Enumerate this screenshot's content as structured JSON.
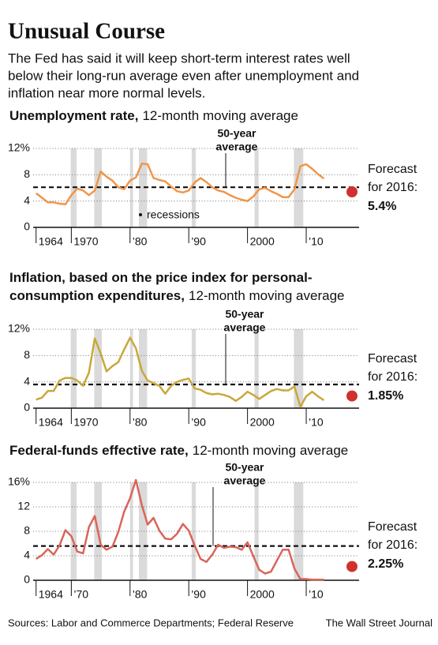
{
  "title": "Unusual Course",
  "subtitle": [
    "The Fed has said it will keep short-term interest rates well",
    "below their long-run average even after unemployment and",
    "inflation near more normal levels."
  ],
  "source": "Sources: Labor and Commerce Departments; Federal Reserve",
  "credit": "The Wall Street Journal",
  "chart_data": [
    {
      "type": "line",
      "title": [
        "Unemployment rate,"
      ],
      "subtitle": "12-month moving average",
      "x": [
        1964,
        1965,
        1966,
        1967,
        1968,
        1969,
        1970,
        1971,
        1972,
        1973,
        1974,
        1975,
        1976,
        1977,
        1978,
        1979,
        1980,
        1981,
        1982,
        1983,
        1984,
        1985,
        1986,
        1987,
        1988,
        1989,
        1990,
        1991,
        1992,
        1993,
        1994,
        1995,
        1996,
        1997,
        1998,
        1999,
        2000,
        2001,
        2002,
        2003,
        2004,
        2005,
        2006,
        2007,
        2008,
        2009,
        2010,
        2011,
        2012,
        2013
      ],
      "series": [
        {
          "color": "#f0964a",
          "values": [
            5.2,
            4.5,
            3.8,
            3.8,
            3.6,
            3.5,
            4.9,
            5.9,
            5.6,
            4.9,
            5.6,
            8.5,
            7.7,
            7.1,
            6.1,
            5.8,
            7.1,
            7.6,
            9.7,
            9.6,
            7.5,
            7.2,
            7.0,
            6.2,
            5.5,
            5.3,
            5.6,
            6.8,
            7.5,
            6.9,
            6.1,
            5.6,
            5.4,
            4.9,
            4.5,
            4.2,
            4.0,
            4.7,
            5.8,
            6.0,
            5.5,
            5.1,
            4.6,
            4.6,
            5.8,
            9.3,
            9.6,
            8.9,
            8.1,
            7.4
          ]
        }
      ],
      "xlim": [
        1963.5,
        2019
      ],
      "xticks": [
        1964,
        1970,
        {
          "value": 1980,
          "label": "’80"
        },
        {
          "value": 1990,
          "label": "’90"
        },
        2000,
        {
          "value": 2010,
          "label": "’10"
        }
      ],
      "ylim": [
        0,
        12
      ],
      "yticks": [
        0,
        4,
        8,
        {
          "value": 12,
          "label": "12%"
        }
      ],
      "grid": true,
      "recessions": [
        [
          1969.9,
          1970.9
        ],
        [
          1973.9,
          1975.2
        ],
        [
          1980.0,
          1980.5
        ],
        [
          1981.5,
          1982.9
        ],
        [
          1990.5,
          1991.2
        ],
        [
          2001.2,
          2001.9
        ],
        [
          2007.9,
          2009.5
        ]
      ],
      "recession_label": "recessions",
      "average": 6.1,
      "average_label": [
        "50-year",
        "average"
      ],
      "forecast": {
        "label": [
          "Forecast",
          "for 2016:"
        ],
        "value": 5.4,
        "value_label": "5.4%",
        "color": "#d0312d"
      }
    },
    {
      "type": "line",
      "title": [
        "Inflation, based on the price index for personal-",
        "consumption expenditures,"
      ],
      "subtitle": "12-month moving average",
      "x": [
        1964,
        1965,
        1966,
        1967,
        1968,
        1969,
        1970,
        1971,
        1972,
        1973,
        1974,
        1975,
        1976,
        1977,
        1978,
        1979,
        1980,
        1981,
        1982,
        1983,
        1984,
        1985,
        1986,
        1987,
        1988,
        1989,
        1990,
        1991,
        1992,
        1993,
        1994,
        1995,
        1996,
        1997,
        1998,
        1999,
        2000,
        2001,
        2002,
        2003,
        2004,
        2005,
        2006,
        2007,
        2008,
        2009,
        2010,
        2011,
        2012,
        2013
      ],
      "series": [
        {
          "color": "#c9a83a",
          "values": [
            1.3,
            1.6,
            2.6,
            2.6,
            4.2,
            4.6,
            4.6,
            4.2,
            3.4,
            5.4,
            10.6,
            8.3,
            5.6,
            6.4,
            7.0,
            8.9,
            10.7,
            9.1,
            5.7,
            4.2,
            3.8,
            3.4,
            2.2,
            3.4,
            4.0,
            4.3,
            4.5,
            3.0,
            2.8,
            2.3,
            2.1,
            2.2,
            2.0,
            1.7,
            1.1,
            1.7,
            2.5,
            2.0,
            1.4,
            2.0,
            2.6,
            2.9,
            2.7,
            2.7,
            3.3,
            0.2,
            1.8,
            2.5,
            1.8,
            1.2
          ]
        }
      ],
      "xlim": [
        1963.5,
        2019
      ],
      "xticks": [
        1964,
        1970,
        {
          "value": 1980,
          "label": "’80"
        },
        {
          "value": 1990,
          "label": "’90"
        },
        2000,
        {
          "value": 2010,
          "label": "’10"
        }
      ],
      "ylim": [
        0,
        12
      ],
      "yticks": [
        0,
        4,
        8,
        {
          "value": 12,
          "label": "12%"
        }
      ],
      "grid": true,
      "recessions": [
        [
          1969.9,
          1970.9
        ],
        [
          1973.9,
          1975.2
        ],
        [
          1980.0,
          1980.5
        ],
        [
          1981.5,
          1982.9
        ],
        [
          1990.5,
          1991.2
        ],
        [
          2001.2,
          2001.9
        ],
        [
          2007.9,
          2009.5
        ]
      ],
      "average": 3.6,
      "average_label": [
        "50-year",
        "average"
      ],
      "forecast": {
        "label": [
          "Forecast",
          "for 2016:"
        ],
        "value": 1.85,
        "value_label": "1.85%",
        "color": "#d0312d"
      }
    },
    {
      "type": "line",
      "title": [
        "Federal-funds effective rate,"
      ],
      "subtitle": "12-month moving average",
      "x": [
        1964,
        1965,
        1966,
        1967,
        1968,
        1969,
        1970,
        1971,
        1972,
        1973,
        1974,
        1975,
        1976,
        1977,
        1978,
        1979,
        1980,
        1981,
        1982,
        1983,
        1984,
        1985,
        1986,
        1987,
        1988,
        1989,
        1990,
        1991,
        1992,
        1993,
        1994,
        1995,
        1996,
        1997,
        1998,
        1999,
        2000,
        2001,
        2002,
        2003,
        2004,
        2005,
        2006,
        2007,
        2008,
        2009,
        2010,
        2011,
        2012,
        2013
      ],
      "series": [
        {
          "color": "#d9655a",
          "values": [
            3.5,
            4.1,
            5.1,
            4.2,
            5.7,
            8.2,
            7.2,
            4.7,
            4.4,
            8.7,
            10.5,
            5.8,
            5.0,
            5.5,
            7.9,
            11.2,
            13.4,
            16.4,
            12.3,
            9.1,
            10.2,
            8.1,
            6.8,
            6.7,
            7.6,
            9.2,
            8.1,
            5.7,
            3.5,
            3.0,
            4.2,
            5.8,
            5.3,
            5.5,
            5.4,
            5.0,
            6.2,
            3.9,
            1.7,
            1.1,
            1.4,
            3.2,
            5.0,
            5.0,
            1.9,
            0.2,
            0.2,
            0.1,
            0.1,
            0.1
          ]
        }
      ],
      "xlim": [
        1963.5,
        2019
      ],
      "xticks": [
        1964,
        {
          "value": 1970,
          "label": "’70"
        },
        {
          "value": 1980,
          "label": "’80"
        },
        {
          "value": 1990,
          "label": "’90"
        },
        2000,
        {
          "value": 2010,
          "label": "’10"
        }
      ],
      "ylim": [
        0,
        16
      ],
      "yticks": [
        0,
        4,
        8,
        12,
        {
          "value": 16,
          "label": "16%"
        }
      ],
      "grid": true,
      "recessions": [
        [
          1969.9,
          1970.9
        ],
        [
          1973.9,
          1975.2
        ],
        [
          1980.0,
          1980.5
        ],
        [
          1981.5,
          1982.9
        ],
        [
          1990.5,
          1991.2
        ],
        [
          2001.2,
          2001.9
        ],
        [
          2007.9,
          2009.5
        ]
      ],
      "average": 5.6,
      "average_label": [
        "50-year",
        "average"
      ],
      "forecast": {
        "label": [
          "Forecast",
          "for 2016:"
        ],
        "value": 2.25,
        "value_label": "2.25%",
        "color": "#d0312d"
      }
    }
  ]
}
